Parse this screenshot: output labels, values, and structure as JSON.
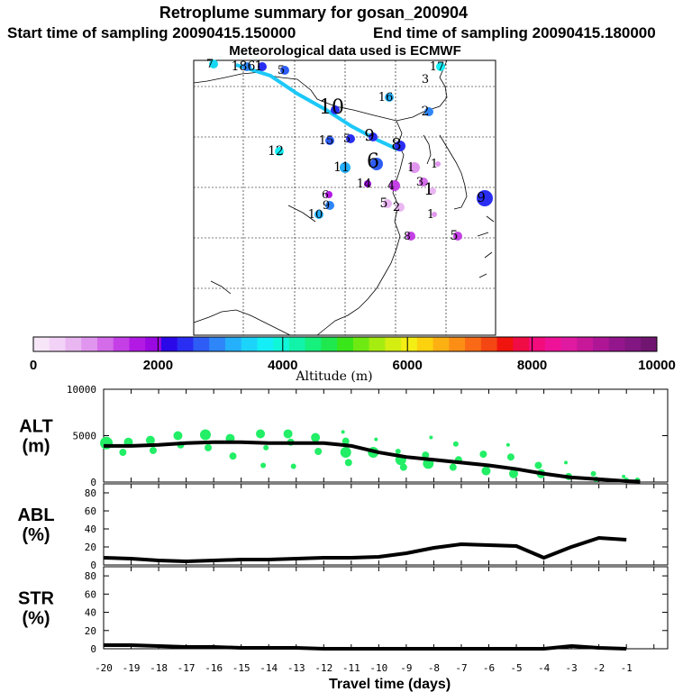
{
  "title": "Retroplume summary for gosan_200904",
  "start_label": "Start time of sampling 20090415.150000",
  "end_label": "End time of sampling 20090415.180000",
  "met_label": "Meteorological data used is ECMWF",
  "colorbar": {
    "label": "Altitude (m)",
    "ticks": [
      "0",
      "2000",
      "4000",
      "6000",
      "8000",
      "10000"
    ],
    "colors": [
      "#f6e6f8",
      "#f2d2f6",
      "#e9b6f1",
      "#e096ee",
      "#d46cea",
      "#c440e6",
      "#b21ae4",
      "#9a08e2",
      "#2b08e8",
      "#2a2ef2",
      "#2e5df6",
      "#2e86f8",
      "#24b0fa",
      "#1cd4fa",
      "#14eef6",
      "#10f6d8",
      "#12f3aa",
      "#16f07c",
      "#1ee84e",
      "#38e61a",
      "#6eea12",
      "#a6ec10",
      "#d4ee12",
      "#f4ee14",
      "#fcd20e",
      "#fcb012",
      "#fc8e16",
      "#fa6a16",
      "#f44612",
      "#f0140e",
      "#f00c44",
      "#f20c7c",
      "#ee1298",
      "#e01aa0",
      "#c8189a",
      "#ae1696",
      "#94168c",
      "#821682",
      "#701670"
    ]
  },
  "map": {
    "numbers": [
      {
        "t": "7",
        "c": "#16d8f2"
      },
      {
        "t": "186",
        "c": "#2e86f8"
      },
      {
        "t": "1",
        "c": "#2a2ef2"
      },
      {
        "t": "5",
        "c": "#2e5df6"
      },
      {
        "t": "17",
        "c": "#14eef6"
      },
      {
        "t": "3",
        "c": "#000000"
      },
      {
        "t": "10",
        "c": "#2a2ef2"
      },
      {
        "t": "16",
        "c": "#24b0fa"
      },
      {
        "t": "2",
        "c": "#2e86f8"
      },
      {
        "t": "12",
        "c": "#14eef6"
      },
      {
        "t": "15",
        "c": "#2e5df6"
      },
      {
        "t": "5",
        "c": "#2a2ef2"
      },
      {
        "t": "9",
        "c": "#2a2ef2"
      },
      {
        "t": "11",
        "c": "#24b0fa"
      },
      {
        "t": "14",
        "c": "#9a08e2"
      },
      {
        "t": "6",
        "c": "#b21ae4"
      },
      {
        "t": "10",
        "c": "#24b0fa"
      },
      {
        "t": "9",
        "c": "#2e86f8"
      },
      {
        "t": "8",
        "c": "#2a2ef2"
      },
      {
        "t": "6",
        "c": "#2e5df6"
      },
      {
        "t": "4",
        "c": "#c440e6"
      },
      {
        "t": "1",
        "c": "#e096ee"
      },
      {
        "t": "3",
        "c": "#d46cea"
      },
      {
        "t": "5",
        "c": "#e9b6f1"
      },
      {
        "t": "2",
        "c": "#e9b6f1"
      },
      {
        "t": "1",
        "c": "#e9b6f1"
      },
      {
        "t": "9",
        "c": "#2a2ef2"
      },
      {
        "t": "5",
        "c": "#c440e6"
      },
      {
        "t": "8",
        "c": "#c440e6"
      },
      {
        "t": "1",
        "c": "#e096ee"
      },
      {
        "t": "1",
        "c": "#e096ee"
      }
    ]
  },
  "chart_data": [
    {
      "type": "scatter",
      "name": "ALT",
      "ylabel_line1": "ALT",
      "ylabel_line2": "(m)",
      "ylim": [
        0,
        10000
      ],
      "yticks": [
        "0",
        "5000",
        "10000"
      ],
      "line": {
        "x": [
          -20,
          -19,
          -18,
          -17,
          -16,
          -15,
          -14,
          -13,
          -12,
          -11,
          -10,
          -9,
          -8,
          -7,
          -6,
          -5,
          -4,
          -3,
          -2,
          -1,
          -0.5
        ],
        "y": [
          3900,
          3900,
          4000,
          4200,
          4300,
          4300,
          4200,
          4200,
          4200,
          3900,
          3200,
          2700,
          2400,
          2100,
          1800,
          1400,
          900,
          500,
          300,
          100,
          50
        ]
      },
      "points": [
        {
          "x": -19.9,
          "y": 4200,
          "s": 7
        },
        {
          "x": -19.3,
          "y": 3200,
          "s": 4
        },
        {
          "x": -19.1,
          "y": 4300,
          "s": 5
        },
        {
          "x": -18.3,
          "y": 4500,
          "s": 5
        },
        {
          "x": -18.2,
          "y": 3400,
          "s": 4
        },
        {
          "x": -17.3,
          "y": 5000,
          "s": 5
        },
        {
          "x": -17.2,
          "y": 4000,
          "s": 4
        },
        {
          "x": -16.3,
          "y": 5100,
          "s": 6
        },
        {
          "x": -16.2,
          "y": 3700,
          "s": 4
        },
        {
          "x": -15.4,
          "y": 4700,
          "s": 5
        },
        {
          "x": -15.3,
          "y": 2800,
          "s": 4
        },
        {
          "x": -14.3,
          "y": 5200,
          "s": 5
        },
        {
          "x": -14.2,
          "y": 1800,
          "s": 3
        },
        {
          "x": -14.1,
          "y": 3700,
          "s": 3
        },
        {
          "x": -13.3,
          "y": 5200,
          "s": 5
        },
        {
          "x": -13.2,
          "y": 4300,
          "s": 4
        },
        {
          "x": -13.1,
          "y": 1700,
          "s": 3
        },
        {
          "x": -12.3,
          "y": 4800,
          "s": 5
        },
        {
          "x": -12.2,
          "y": 3300,
          "s": 4
        },
        {
          "x": -11.3,
          "y": 5400,
          "s": 2
        },
        {
          "x": -11.2,
          "y": 4400,
          "s": 4
        },
        {
          "x": -11.2,
          "y": 3200,
          "s": 6
        },
        {
          "x": -11.1,
          "y": 2100,
          "s": 4
        },
        {
          "x": -10.2,
          "y": 3200,
          "s": 6
        },
        {
          "x": -10.1,
          "y": 4600,
          "s": 2
        },
        {
          "x": -9.3,
          "y": 3300,
          "s": 3
        },
        {
          "x": -9.2,
          "y": 2400,
          "s": 6
        },
        {
          "x": -9.1,
          "y": 1600,
          "s": 4
        },
        {
          "x": -8.3,
          "y": 2900,
          "s": 4
        },
        {
          "x": -8.2,
          "y": 2000,
          "s": 6
        },
        {
          "x": -8.1,
          "y": 4800,
          "s": 2
        },
        {
          "x": -7.3,
          "y": 1600,
          "s": 4
        },
        {
          "x": -7.2,
          "y": 4100,
          "s": 3
        },
        {
          "x": -7.1,
          "y": 2400,
          "s": 4
        },
        {
          "x": -6.2,
          "y": 3000,
          "s": 4
        },
        {
          "x": -6.1,
          "y": 1200,
          "s": 5
        },
        {
          "x": -5.3,
          "y": 4000,
          "s": 2
        },
        {
          "x": -5.2,
          "y": 2700,
          "s": 4
        },
        {
          "x": -5.1,
          "y": 900,
          "s": 5
        },
        {
          "x": -4.2,
          "y": 1800,
          "s": 4
        },
        {
          "x": -4.1,
          "y": 900,
          "s": 5
        },
        {
          "x": -3.2,
          "y": 2100,
          "s": 2
        },
        {
          "x": -3.1,
          "y": 600,
          "s": 4
        },
        {
          "x": -2.2,
          "y": 900,
          "s": 3
        },
        {
          "x": -2.1,
          "y": 300,
          "s": 3
        },
        {
          "x": -1.1,
          "y": 600,
          "s": 2
        },
        {
          "x": -1.0,
          "y": 200,
          "s": 3
        },
        {
          "x": -0.6,
          "y": 200,
          "s": 3
        }
      ]
    },
    {
      "type": "line",
      "name": "ABL",
      "ylabel_line1": "ABL",
      "ylabel_line2": "(%)",
      "ylim": [
        0,
        90
      ],
      "yticks": [
        "0",
        "20",
        "40",
        "60",
        "80"
      ],
      "x": [
        -20,
        -19,
        -18,
        -17,
        -16,
        -15,
        -14,
        -13,
        -12,
        -11,
        -10,
        -9,
        -8,
        -7,
        -6,
        -5,
        -4,
        -3,
        -2,
        -1
      ],
      "y": [
        8,
        7,
        5,
        4,
        5,
        6,
        6,
        7,
        8,
        8,
        9,
        13,
        19,
        23,
        22,
        21,
        8,
        20,
        30,
        28
      ]
    },
    {
      "type": "line",
      "name": "STR",
      "ylabel_line1": "STR",
      "ylabel_line2": "(%)",
      "ylim": [
        0,
        90
      ],
      "yticks": [
        "0",
        "20",
        "40",
        "60",
        "80"
      ],
      "x": [
        -20,
        -19,
        -18,
        -17,
        -16,
        -15,
        -14,
        -13,
        -12,
        -11,
        -10,
        -9,
        -8,
        -7,
        -6,
        -5,
        -4,
        -3,
        -2,
        -1
      ],
      "y": [
        4,
        4,
        3,
        2,
        2,
        1,
        1,
        1,
        0,
        0,
        0,
        0,
        0,
        0,
        0,
        0,
        0,
        3,
        1,
        0
      ],
      "xlabel": "Travel time (days)",
      "xticks": [
        "-20",
        "-19",
        "-18",
        "-17",
        "-16",
        "-15",
        "-14",
        "-13",
        "-12",
        "-11",
        "-10",
        "-9",
        "-8",
        "-7",
        "-6",
        "-5",
        "-4",
        "-3",
        "-2",
        "-1"
      ]
    }
  ]
}
